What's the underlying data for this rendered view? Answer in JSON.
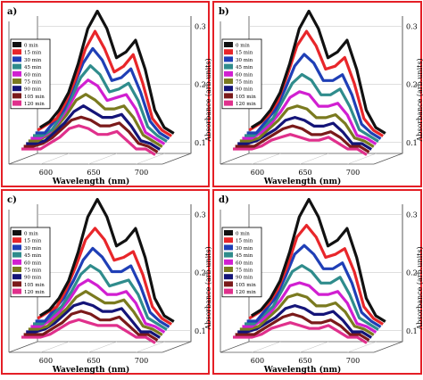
{
  "figure": {
    "border_color": "#e41f26",
    "background": "#ffffff"
  },
  "chart_data": [
    {
      "type": "line",
      "panel_label": "a)",
      "title": "",
      "xlabel": "Wavelength  (nm)",
      "ylabel": "Absorbance (arb.units)",
      "x_ticks": [
        "600",
        "650",
        "700"
      ],
      "y_ticks": [
        "0.1",
        "0.2",
        "0.3"
      ],
      "xlim": [
        580,
        720
      ],
      "ylim": [
        0.08,
        0.31
      ],
      "legend_position": "left",
      "x": [
        580,
        590,
        600,
        610,
        620,
        630,
        640,
        650,
        660,
        670,
        680,
        690,
        700,
        710,
        720
      ],
      "series": [
        {
          "name": "0 min",
          "color": "#111111",
          "values": [
            0.1,
            0.11,
            0.13,
            0.16,
            0.21,
            0.27,
            0.3,
            0.27,
            0.22,
            0.23,
            0.25,
            0.2,
            0.13,
            0.1,
            0.09
          ]
        },
        {
          "name": "15 min",
          "color": "#e8262a",
          "values": [
            0.1,
            0.11,
            0.12,
            0.15,
            0.19,
            0.24,
            0.27,
            0.24,
            0.2,
            0.21,
            0.23,
            0.18,
            0.12,
            0.1,
            0.09
          ]
        },
        {
          "name": "30 min",
          "color": "#1f3fb6",
          "values": [
            0.1,
            0.1,
            0.12,
            0.14,
            0.18,
            0.22,
            0.245,
            0.225,
            0.19,
            0.195,
            0.21,
            0.17,
            0.12,
            0.1,
            0.09
          ]
        },
        {
          "name": "45 min",
          "color": "#2f8c8c",
          "values": [
            0.1,
            0.1,
            0.11,
            0.135,
            0.165,
            0.2,
            0.22,
            0.205,
            0.175,
            0.18,
            0.19,
            0.16,
            0.115,
            0.1,
            0.09
          ]
        },
        {
          "name": "60 min",
          "color": "#d11fd1",
          "values": [
            0.1,
            0.1,
            0.11,
            0.13,
            0.155,
            0.185,
            0.2,
            0.19,
            0.165,
            0.17,
            0.175,
            0.15,
            0.11,
            0.1,
            0.09
          ]
        },
        {
          "name": "75 min",
          "color": "#7a7a1f",
          "values": [
            0.1,
            0.1,
            0.11,
            0.125,
            0.145,
            0.17,
            0.18,
            0.17,
            0.155,
            0.155,
            0.16,
            0.14,
            0.11,
            0.1,
            0.09
          ]
        },
        {
          "name": "90 min",
          "color": "#141478",
          "values": [
            0.1,
            0.1,
            0.105,
            0.12,
            0.135,
            0.155,
            0.165,
            0.155,
            0.145,
            0.145,
            0.15,
            0.13,
            0.105,
            0.1,
            0.09
          ]
        },
        {
          "name": "105 min",
          "color": "#7a1a1a",
          "values": [
            0.1,
            0.1,
            0.105,
            0.115,
            0.13,
            0.145,
            0.15,
            0.145,
            0.135,
            0.135,
            0.14,
            0.125,
            0.105,
            0.1,
            0.09
          ]
        },
        {
          "name": "120 min",
          "color": "#e0308c",
          "values": [
            0.1,
            0.1,
            0.1,
            0.11,
            0.12,
            0.135,
            0.14,
            0.135,
            0.125,
            0.125,
            0.13,
            0.115,
            0.1,
            0.1,
            0.09
          ]
        }
      ]
    },
    {
      "type": "line",
      "panel_label": "b)",
      "title": "",
      "xlabel": "Wavelength  (nm)",
      "ylabel": "Absorbance (arb.units)",
      "x_ticks": [
        "600",
        "650",
        "700"
      ],
      "y_ticks": [
        "0.1",
        "0.2",
        "0.3"
      ],
      "xlim": [
        580,
        720
      ],
      "ylim": [
        0.08,
        0.31
      ],
      "legend_position": "left",
      "x": [
        580,
        590,
        600,
        610,
        620,
        630,
        640,
        650,
        660,
        670,
        680,
        690,
        700,
        710,
        720
      ],
      "series": [
        {
          "name": "0 min",
          "color": "#111111",
          "values": [
            0.1,
            0.11,
            0.13,
            0.16,
            0.21,
            0.27,
            0.3,
            0.27,
            0.22,
            0.23,
            0.25,
            0.2,
            0.13,
            0.1,
            0.09
          ]
        },
        {
          "name": "15 min",
          "color": "#e8262a",
          "values": [
            0.1,
            0.11,
            0.125,
            0.15,
            0.195,
            0.245,
            0.27,
            0.245,
            0.205,
            0.21,
            0.225,
            0.18,
            0.12,
            0.1,
            0.09
          ]
        },
        {
          "name": "30 min",
          "color": "#1f3fb6",
          "values": [
            0.1,
            0.1,
            0.12,
            0.14,
            0.175,
            0.215,
            0.235,
            0.22,
            0.19,
            0.19,
            0.2,
            0.165,
            0.115,
            0.1,
            0.09
          ]
        },
        {
          "name": "45 min",
          "color": "#2f8c8c",
          "values": [
            0.1,
            0.1,
            0.115,
            0.13,
            0.16,
            0.19,
            0.205,
            0.195,
            0.17,
            0.17,
            0.18,
            0.15,
            0.11,
            0.1,
            0.09
          ]
        },
        {
          "name": "60 min",
          "color": "#d11fd1",
          "values": [
            0.1,
            0.1,
            0.11,
            0.125,
            0.145,
            0.17,
            0.18,
            0.175,
            0.155,
            0.155,
            0.16,
            0.14,
            0.105,
            0.1,
            0.09
          ]
        },
        {
          "name": "75 min",
          "color": "#7a7a1f",
          "values": [
            0.1,
            0.1,
            0.105,
            0.12,
            0.135,
            0.155,
            0.16,
            0.155,
            0.14,
            0.14,
            0.145,
            0.13,
            0.105,
            0.1,
            0.09
          ]
        },
        {
          "name": "90 min",
          "color": "#141478",
          "values": [
            0.1,
            0.1,
            0.105,
            0.115,
            0.125,
            0.14,
            0.145,
            0.14,
            0.13,
            0.13,
            0.135,
            0.12,
            0.1,
            0.1,
            0.09
          ]
        },
        {
          "name": "105 min",
          "color": "#7a1a1a",
          "values": [
            0.1,
            0.1,
            0.1,
            0.11,
            0.12,
            0.13,
            0.135,
            0.13,
            0.12,
            0.12,
            0.125,
            0.115,
            0.1,
            0.1,
            0.09
          ]
        },
        {
          "name": "120 min",
          "color": "#e0308c",
          "values": [
            0.1,
            0.1,
            0.1,
            0.105,
            0.115,
            0.12,
            0.125,
            0.12,
            0.115,
            0.115,
            0.12,
            0.11,
            0.1,
            0.1,
            0.09
          ]
        }
      ]
    },
    {
      "type": "line",
      "panel_label": "c)",
      "title": "",
      "xlabel": "Wavelength  (nm)",
      "ylabel": "Absorbance (arb.units)",
      "x_ticks": [
        "600",
        "650",
        "700"
      ],
      "y_ticks": [
        "0.1",
        "0.2",
        "0.3"
      ],
      "xlim": [
        580,
        720
      ],
      "ylim": [
        0.08,
        0.31
      ],
      "legend_position": "left",
      "x": [
        580,
        590,
        600,
        610,
        620,
        630,
        640,
        650,
        660,
        670,
        680,
        690,
        700,
        710,
        720
      ],
      "series": [
        {
          "name": "0 min",
          "color": "#111111",
          "values": [
            0.1,
            0.11,
            0.13,
            0.16,
            0.21,
            0.27,
            0.3,
            0.27,
            0.22,
            0.23,
            0.25,
            0.2,
            0.13,
            0.1,
            0.09
          ]
        },
        {
          "name": "15 min",
          "color": "#e8262a",
          "values": [
            0.1,
            0.11,
            0.12,
            0.15,
            0.19,
            0.235,
            0.255,
            0.235,
            0.2,
            0.205,
            0.215,
            0.175,
            0.12,
            0.1,
            0.09
          ]
        },
        {
          "name": "30 min",
          "color": "#1f3fb6",
          "values": [
            0.1,
            0.1,
            0.12,
            0.14,
            0.17,
            0.205,
            0.225,
            0.21,
            0.185,
            0.185,
            0.195,
            0.16,
            0.115,
            0.1,
            0.09
          ]
        },
        {
          "name": "45 min",
          "color": "#2f8c8c",
          "values": [
            0.1,
            0.1,
            0.115,
            0.13,
            0.155,
            0.185,
            0.2,
            0.19,
            0.165,
            0.17,
            0.175,
            0.15,
            0.11,
            0.1,
            0.09
          ]
        },
        {
          "name": "60 min",
          "color": "#d11fd1",
          "values": [
            0.1,
            0.1,
            0.11,
            0.125,
            0.145,
            0.17,
            0.18,
            0.17,
            0.155,
            0.155,
            0.16,
            0.14,
            0.105,
            0.1,
            0.09
          ]
        },
        {
          "name": "75 min",
          "color": "#7a7a1f",
          "values": [
            0.1,
            0.1,
            0.105,
            0.12,
            0.135,
            0.155,
            0.165,
            0.155,
            0.145,
            0.145,
            0.15,
            0.13,
            0.105,
            0.1,
            0.09
          ]
        },
        {
          "name": "90 min",
          "color": "#141478",
          "values": [
            0.1,
            0.1,
            0.105,
            0.115,
            0.13,
            0.145,
            0.15,
            0.145,
            0.135,
            0.135,
            0.14,
            0.12,
            0.1,
            0.1,
            0.09
          ]
        },
        {
          "name": "105 min",
          "color": "#7a1a1a",
          "values": [
            0.1,
            0.1,
            0.1,
            0.11,
            0.12,
            0.135,
            0.14,
            0.135,
            0.125,
            0.125,
            0.13,
            0.115,
            0.1,
            0.1,
            0.09
          ]
        },
        {
          "name": "120 min",
          "color": "#e0308c",
          "values": [
            0.1,
            0.1,
            0.1,
            0.105,
            0.115,
            0.125,
            0.13,
            0.125,
            0.12,
            0.12,
            0.12,
            0.11,
            0.1,
            0.1,
            0.09
          ]
        }
      ]
    },
    {
      "type": "line",
      "panel_label": "d)",
      "title": "",
      "xlabel": "Wavelength  (nm)",
      "ylabel": "Absorbance (arb.units)",
      "x_ticks": [
        "600",
        "650",
        "700"
      ],
      "y_ticks": [
        "0.1",
        "0.2",
        "0.3"
      ],
      "xlim": [
        580,
        720
      ],
      "ylim": [
        0.08,
        0.31
      ],
      "legend_position": "left",
      "x": [
        580,
        590,
        600,
        610,
        620,
        630,
        640,
        650,
        660,
        670,
        680,
        690,
        700,
        710,
        720
      ],
      "series": [
        {
          "name": "0 min",
          "color": "#111111",
          "values": [
            0.1,
            0.11,
            0.13,
            0.16,
            0.21,
            0.27,
            0.3,
            0.27,
            0.22,
            0.23,
            0.25,
            0.2,
            0.13,
            0.1,
            0.09
          ]
        },
        {
          "name": "15 min",
          "color": "#e8262a",
          "values": [
            0.1,
            0.11,
            0.125,
            0.15,
            0.19,
            0.24,
            0.26,
            0.24,
            0.205,
            0.21,
            0.22,
            0.18,
            0.12,
            0.1,
            0.09
          ]
        },
        {
          "name": "30 min",
          "color": "#1f3fb6",
          "values": [
            0.1,
            0.1,
            0.12,
            0.14,
            0.175,
            0.215,
            0.23,
            0.215,
            0.19,
            0.19,
            0.2,
            0.165,
            0.115,
            0.1,
            0.09
          ]
        },
        {
          "name": "45 min",
          "color": "#2f8c8c",
          "values": [
            0.1,
            0.1,
            0.115,
            0.13,
            0.16,
            0.19,
            0.2,
            0.19,
            0.17,
            0.17,
            0.18,
            0.15,
            0.11,
            0.1,
            0.09
          ]
        },
        {
          "name": "60 min",
          "color": "#d11fd1",
          "values": [
            0.1,
            0.1,
            0.11,
            0.125,
            0.145,
            0.17,
            0.175,
            0.17,
            0.155,
            0.155,
            0.16,
            0.14,
            0.105,
            0.1,
            0.09
          ]
        },
        {
          "name": "75 min",
          "color": "#7a7a1f",
          "values": [
            0.1,
            0.1,
            0.105,
            0.12,
            0.135,
            0.155,
            0.16,
            0.155,
            0.14,
            0.14,
            0.145,
            0.13,
            0.105,
            0.1,
            0.09
          ]
        },
        {
          "name": "90 min",
          "color": "#141478",
          "values": [
            0.1,
            0.1,
            0.105,
            0.115,
            0.125,
            0.14,
            0.145,
            0.14,
            0.13,
            0.13,
            0.135,
            0.12,
            0.1,
            0.1,
            0.09
          ]
        },
        {
          "name": "105 min",
          "color": "#7a1a1a",
          "values": [
            0.1,
            0.1,
            0.1,
            0.11,
            0.12,
            0.13,
            0.135,
            0.13,
            0.12,
            0.12,
            0.125,
            0.115,
            0.1,
            0.1,
            0.09
          ]
        },
        {
          "name": "120 min",
          "color": "#e0308c",
          "values": [
            0.1,
            0.1,
            0.1,
            0.105,
            0.115,
            0.12,
            0.125,
            0.12,
            0.115,
            0.115,
            0.12,
            0.11,
            0.1,
            0.1,
            0.09
          ]
        }
      ]
    }
  ]
}
